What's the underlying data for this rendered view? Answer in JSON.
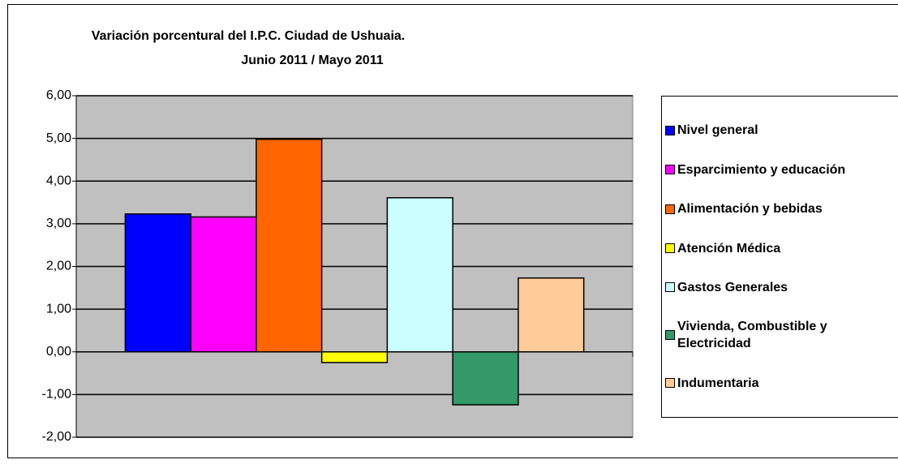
{
  "chart_data": {
    "type": "bar",
    "title": "Variación porcentural del I.P.C. Ciudad de Ushuaia.",
    "subtitle": "Junio 2011 / Mayo 2011",
    "categories": [
      null
    ],
    "series": [
      {
        "name": "Nivel general",
        "color": "#0000ff",
        "values": [
          3.23
        ]
      },
      {
        "name": "Esparcimiento y educación",
        "color": "#ff00ff",
        "values": [
          3.16
        ]
      },
      {
        "name": "Alimentación y bebidas",
        "color": "#ff6600",
        "values": [
          4.98
        ]
      },
      {
        "name": "Atención Médica",
        "color": "#ffff00",
        "values": [
          -0.25
        ]
      },
      {
        "name": "Gastos Generales",
        "color": "#ccffff",
        "values": [
          3.61
        ]
      },
      {
        "name": "Vivienda, Combustible y Electricidad",
        "color": "#339966",
        "values": [
          -1.24
        ]
      },
      {
        "name": "Indumentaria",
        "color": "#ffcc99",
        "values": [
          1.73
        ]
      }
    ],
    "ylim": [
      -2,
      6
    ],
    "yticks": [
      {
        "value": -2,
        "label": "-2,00"
      },
      {
        "value": -1,
        "label": "-1,00"
      },
      {
        "value": 0,
        "label": "0,00"
      },
      {
        "value": 1,
        "label": "1,00"
      },
      {
        "value": 2,
        "label": "2,00"
      },
      {
        "value": 3,
        "label": "3,00"
      },
      {
        "value": 4,
        "label": "4,00"
      },
      {
        "value": 5,
        "label": "5,00"
      },
      {
        "value": 6,
        "label": "6,00"
      }
    ],
    "grid": true,
    "plot_background": "#c0c0c0",
    "legend": "right"
  }
}
